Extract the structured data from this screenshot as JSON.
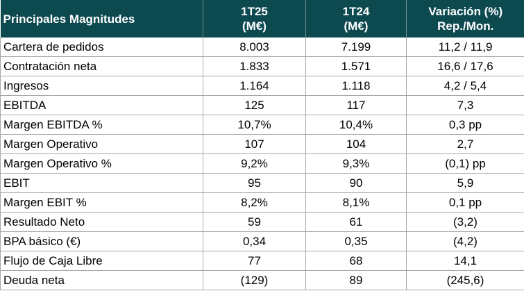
{
  "table": {
    "header": [
      [
        "Principales Magnitudes"
      ],
      [
        "1T25",
        "(M€)"
      ],
      [
        "1T24",
        "(M€)"
      ],
      [
        "Variación (%)",
        "Rep./Mon."
      ]
    ],
    "rows": [
      [
        "Cartera de pedidos",
        "8.003",
        "7.199",
        "11,2 / 11,9"
      ],
      [
        "Contratación neta",
        "1.833",
        "1.571",
        "16,6 / 17,6"
      ],
      [
        "Ingresos",
        "1.164",
        "1.118",
        "4,2 / 5,4"
      ],
      [
        "EBITDA",
        "125",
        "117",
        "7,3"
      ],
      [
        "Margen EBITDA %",
        "10,7%",
        "10,4%",
        "0,3 pp"
      ],
      [
        "Margen Operativo",
        "107",
        "104",
        "2,7"
      ],
      [
        "Margen Operativo %",
        "9,2%",
        "9,3%",
        "(0,1) pp"
      ],
      [
        "EBIT",
        "95",
        "90",
        "5,9"
      ],
      [
        "Margen EBIT %",
        "8,2%",
        "8,1%",
        "0,1 pp"
      ],
      [
        "Resultado Neto",
        "59",
        "61",
        "(3,2)"
      ],
      [
        "BPA básico (€)",
        "0,34",
        "0,35",
        "(4,2)"
      ],
      [
        "Flujo de Caja Libre",
        "77",
        "68",
        "14,1"
      ],
      [
        "Deuda neta",
        "(129)",
        "89",
        "(245,6)"
      ]
    ]
  }
}
